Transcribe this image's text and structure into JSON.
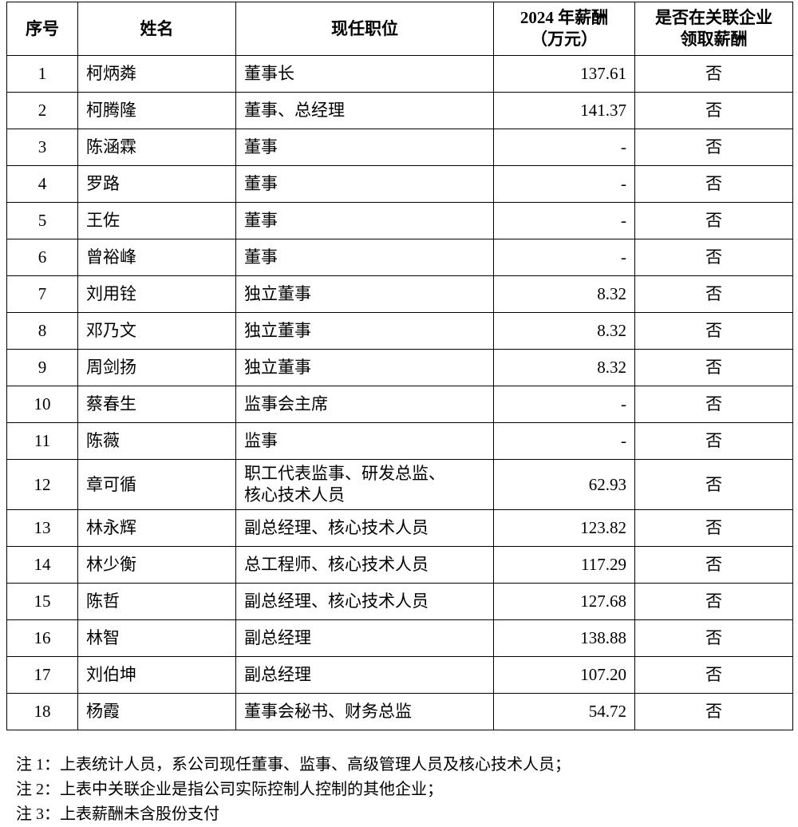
{
  "table": {
    "headers": [
      "序号",
      "姓名",
      "现任职位",
      "2024 年薪酬\n（万元）",
      "是否在关联企业\n领取薪酬"
    ],
    "rows": [
      [
        "1",
        "柯炳粦",
        "董事长",
        "137.61",
        "否"
      ],
      [
        "2",
        "柯腾隆",
        "董事、总经理",
        "141.37",
        "否"
      ],
      [
        "3",
        "陈涵霖",
        "董事",
        "-",
        "否"
      ],
      [
        "4",
        "罗路",
        "董事",
        "-",
        "否"
      ],
      [
        "5",
        "王佐",
        "董事",
        "-",
        "否"
      ],
      [
        "6",
        "曾裕峰",
        "董事",
        "-",
        "否"
      ],
      [
        "7",
        "刘用铨",
        "独立董事",
        "8.32",
        "否"
      ],
      [
        "8",
        "邓乃文",
        "独立董事",
        "8.32",
        "否"
      ],
      [
        "9",
        "周剑扬",
        "独立董事",
        "8.32",
        "否"
      ],
      [
        "10",
        "蔡春生",
        "监事会主席",
        "-",
        "否"
      ],
      [
        "11",
        "陈薇",
        "监事",
        "-",
        "否"
      ],
      [
        "12",
        "章可循",
        "职工代表监事、研发总监、\n核心技术人员",
        "62.93",
        "否"
      ],
      [
        "13",
        "林永辉",
        "副总经理、核心技术人员",
        "123.82",
        "否"
      ],
      [
        "14",
        "林少衡",
        "总工程师、核心技术人员",
        "117.29",
        "否"
      ],
      [
        "15",
        "陈哲",
        "副总经理、核心技术人员",
        "127.68",
        "否"
      ],
      [
        "16",
        "林智",
        "副总经理",
        "138.88",
        "否"
      ],
      [
        "17",
        "刘伯坤",
        "副总经理",
        "107.20",
        "否"
      ],
      [
        "18",
        "杨霞",
        "董事会秘书、财务总监",
        "54.72",
        "否"
      ]
    ]
  },
  "notes": [
    "注 1：上表统计人员，系公司现任董事、监事、高级管理人员及核心技术人员；",
    "注 2：上表中关联企业是指公司实际控制人控制的其他企业；",
    "注 3：上表薪酬未含股份支付"
  ]
}
